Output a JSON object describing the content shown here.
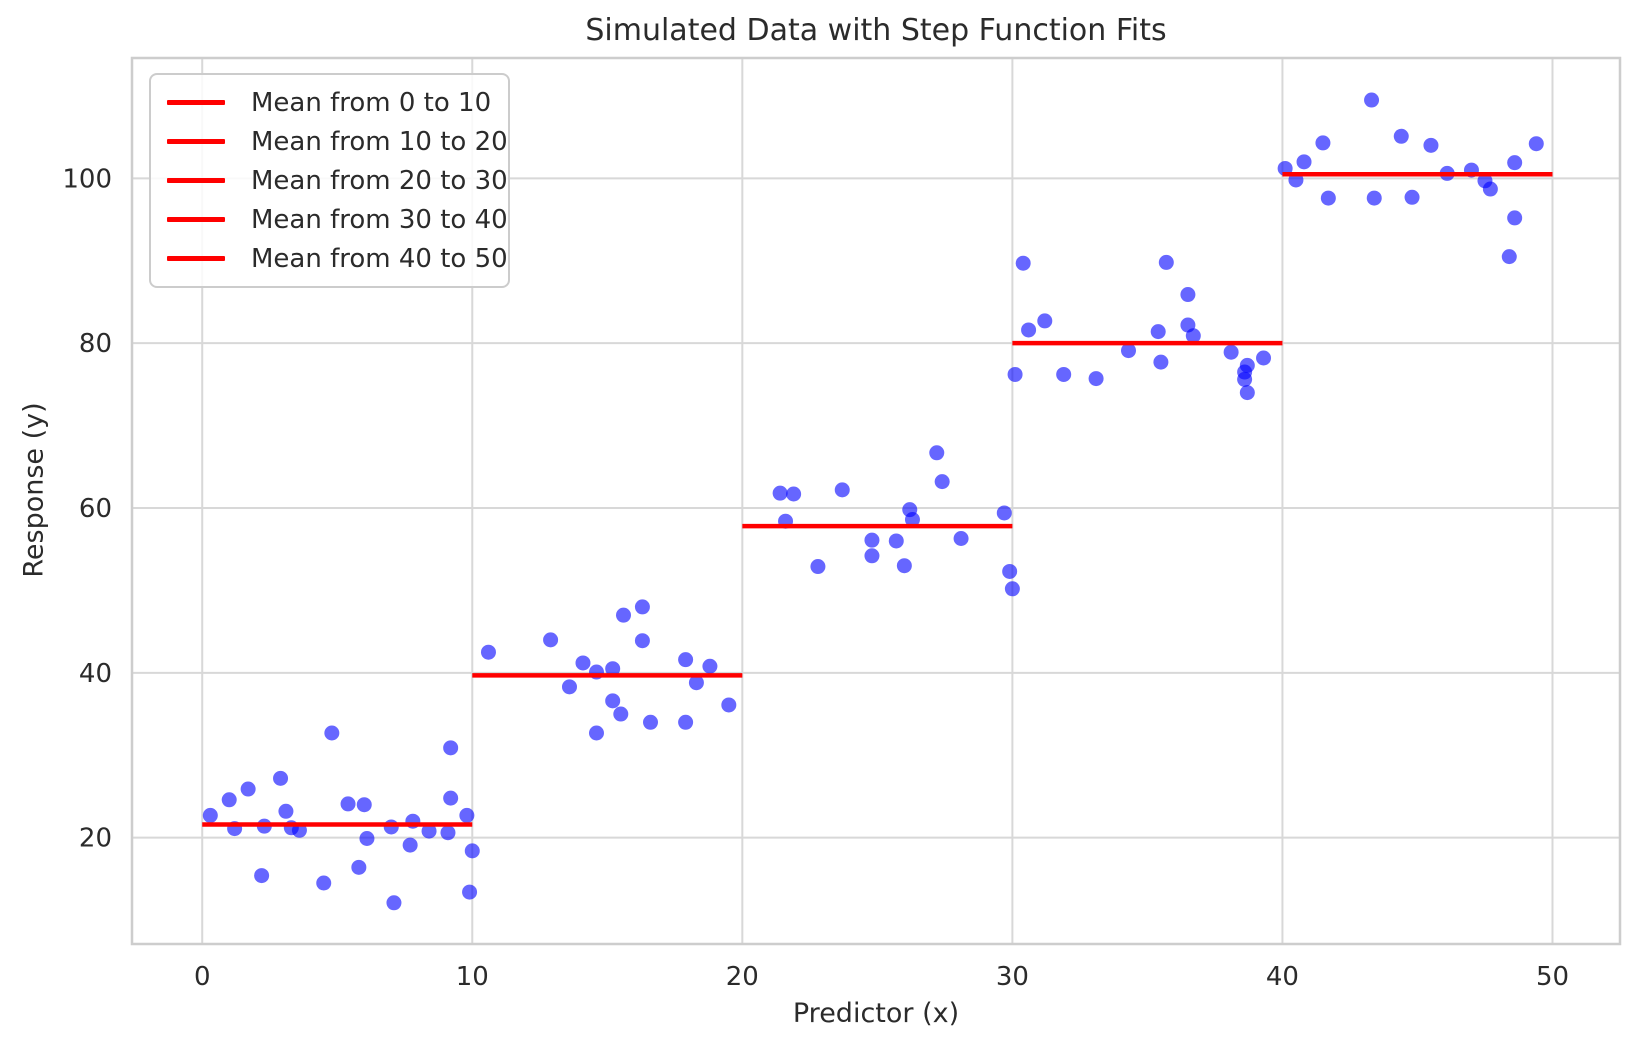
{
  "chart_data": {
    "type": "scatter",
    "title": "Simulated Data with Step Function Fits",
    "xlabel": "Predictor (x)",
    "ylabel": "Response (y)",
    "xlim": [
      -2.6,
      52.5
    ],
    "ylim": [
      7.1,
      114.6
    ],
    "xticks": [
      0,
      10,
      20,
      30,
      40,
      50
    ],
    "yticks": [
      20,
      40,
      60,
      80,
      100
    ],
    "grid": true,
    "colors": {
      "point": "#0000FF",
      "point_opacity": 0.6,
      "mean_line": "#FF0000",
      "grid": "#D8D8D8",
      "spine": "#CDCDCD",
      "text": "#2B2B2B",
      "legend_border": "#CCCCCC"
    },
    "legend": {
      "position": "upper left",
      "entries": [
        {
          "label": "Mean from 0 to 10"
        },
        {
          "label": "Mean from 10 to 20"
        },
        {
          "label": "Mean from 20 to 30"
        },
        {
          "label": "Mean from 30 to 40"
        },
        {
          "label": "Mean from 40 to 50"
        }
      ]
    },
    "segments": [
      {
        "x_range": [
          0,
          10
        ],
        "mean": 21.6,
        "points": [
          [
            0.3,
            22.7
          ],
          [
            1.0,
            24.6
          ],
          [
            1.2,
            21.1
          ],
          [
            1.7,
            25.9
          ],
          [
            2.2,
            15.4
          ],
          [
            2.3,
            21.4
          ],
          [
            2.9,
            27.2
          ],
          [
            3.1,
            23.2
          ],
          [
            3.3,
            21.2
          ],
          [
            3.6,
            20.9
          ],
          [
            4.5,
            14.5
          ],
          [
            4.8,
            32.7
          ],
          [
            5.4,
            24.1
          ],
          [
            5.8,
            16.4
          ],
          [
            6.0,
            24.0
          ],
          [
            6.1,
            19.9
          ],
          [
            7.0,
            21.3
          ],
          [
            7.1,
            12.1
          ],
          [
            7.7,
            19.1
          ],
          [
            7.8,
            22.0
          ],
          [
            8.4,
            20.8
          ],
          [
            9.1,
            20.6
          ],
          [
            9.2,
            24.8
          ],
          [
            9.2,
            30.9
          ],
          [
            9.8,
            22.7
          ],
          [
            9.9,
            13.4
          ],
          [
            10.0,
            18.4
          ]
        ]
      },
      {
        "x_range": [
          10,
          20
        ],
        "mean": 39.7,
        "points": [
          [
            10.6,
            42.5
          ],
          [
            12.9,
            44.0
          ],
          [
            13.6,
            38.3
          ],
          [
            14.1,
            41.2
          ],
          [
            14.6,
            40.1
          ],
          [
            14.6,
            32.7
          ],
          [
            15.2,
            40.5
          ],
          [
            15.2,
            36.6
          ],
          [
            15.5,
            35.0
          ],
          [
            15.6,
            47.0
          ],
          [
            16.3,
            48.0
          ],
          [
            16.3,
            43.9
          ],
          [
            16.6,
            34.0
          ],
          [
            17.9,
            41.6
          ],
          [
            17.9,
            34.0
          ],
          [
            18.3,
            38.8
          ],
          [
            18.8,
            40.8
          ],
          [
            19.5,
            36.1
          ]
        ]
      },
      {
        "x_range": [
          20,
          30
        ],
        "mean": 57.8,
        "points": [
          [
            21.4,
            61.8
          ],
          [
            21.9,
            61.7
          ],
          [
            21.6,
            58.4
          ],
          [
            22.8,
            52.9
          ],
          [
            23.7,
            62.2
          ],
          [
            24.8,
            56.1
          ],
          [
            24.8,
            54.2
          ],
          [
            25.7,
            56.0
          ],
          [
            26.0,
            53.0
          ],
          [
            26.2,
            59.8
          ],
          [
            26.3,
            58.6
          ],
          [
            27.2,
            66.7
          ],
          [
            27.4,
            63.2
          ],
          [
            28.1,
            56.3
          ],
          [
            29.7,
            59.4
          ],
          [
            29.9,
            52.3
          ],
          [
            30.0,
            50.2
          ]
        ]
      },
      {
        "x_range": [
          30,
          40
        ],
        "mean": 80.0,
        "points": [
          [
            30.1,
            76.2
          ],
          [
            30.4,
            89.7
          ],
          [
            30.6,
            81.6
          ],
          [
            31.2,
            82.7
          ],
          [
            31.9,
            76.2
          ],
          [
            33.1,
            75.7
          ],
          [
            34.3,
            79.1
          ],
          [
            35.4,
            81.4
          ],
          [
            35.5,
            77.7
          ],
          [
            35.7,
            89.8
          ],
          [
            36.5,
            85.9
          ],
          [
            36.5,
            82.2
          ],
          [
            36.7,
            80.9
          ],
          [
            38.1,
            78.9
          ],
          [
            38.6,
            76.5
          ],
          [
            38.6,
            75.6
          ],
          [
            38.7,
            77.3
          ],
          [
            38.7,
            74.0
          ],
          [
            39.3,
            78.2
          ]
        ]
      },
      {
        "x_range": [
          40,
          50
        ],
        "mean": 100.5,
        "points": [
          [
            40.1,
            101.2
          ],
          [
            40.5,
            99.8
          ],
          [
            40.8,
            102.0
          ],
          [
            41.5,
            104.3
          ],
          [
            41.7,
            97.6
          ],
          [
            43.3,
            109.5
          ],
          [
            43.4,
            97.6
          ],
          [
            44.4,
            105.1
          ],
          [
            44.8,
            97.7
          ],
          [
            45.5,
            104.0
          ],
          [
            46.1,
            100.6
          ],
          [
            47.0,
            101.0
          ],
          [
            47.5,
            99.7
          ],
          [
            47.7,
            98.7
          ],
          [
            48.6,
            101.9
          ],
          [
            48.6,
            95.2
          ],
          [
            48.4,
            90.5
          ],
          [
            49.4,
            104.2
          ]
        ]
      }
    ]
  }
}
